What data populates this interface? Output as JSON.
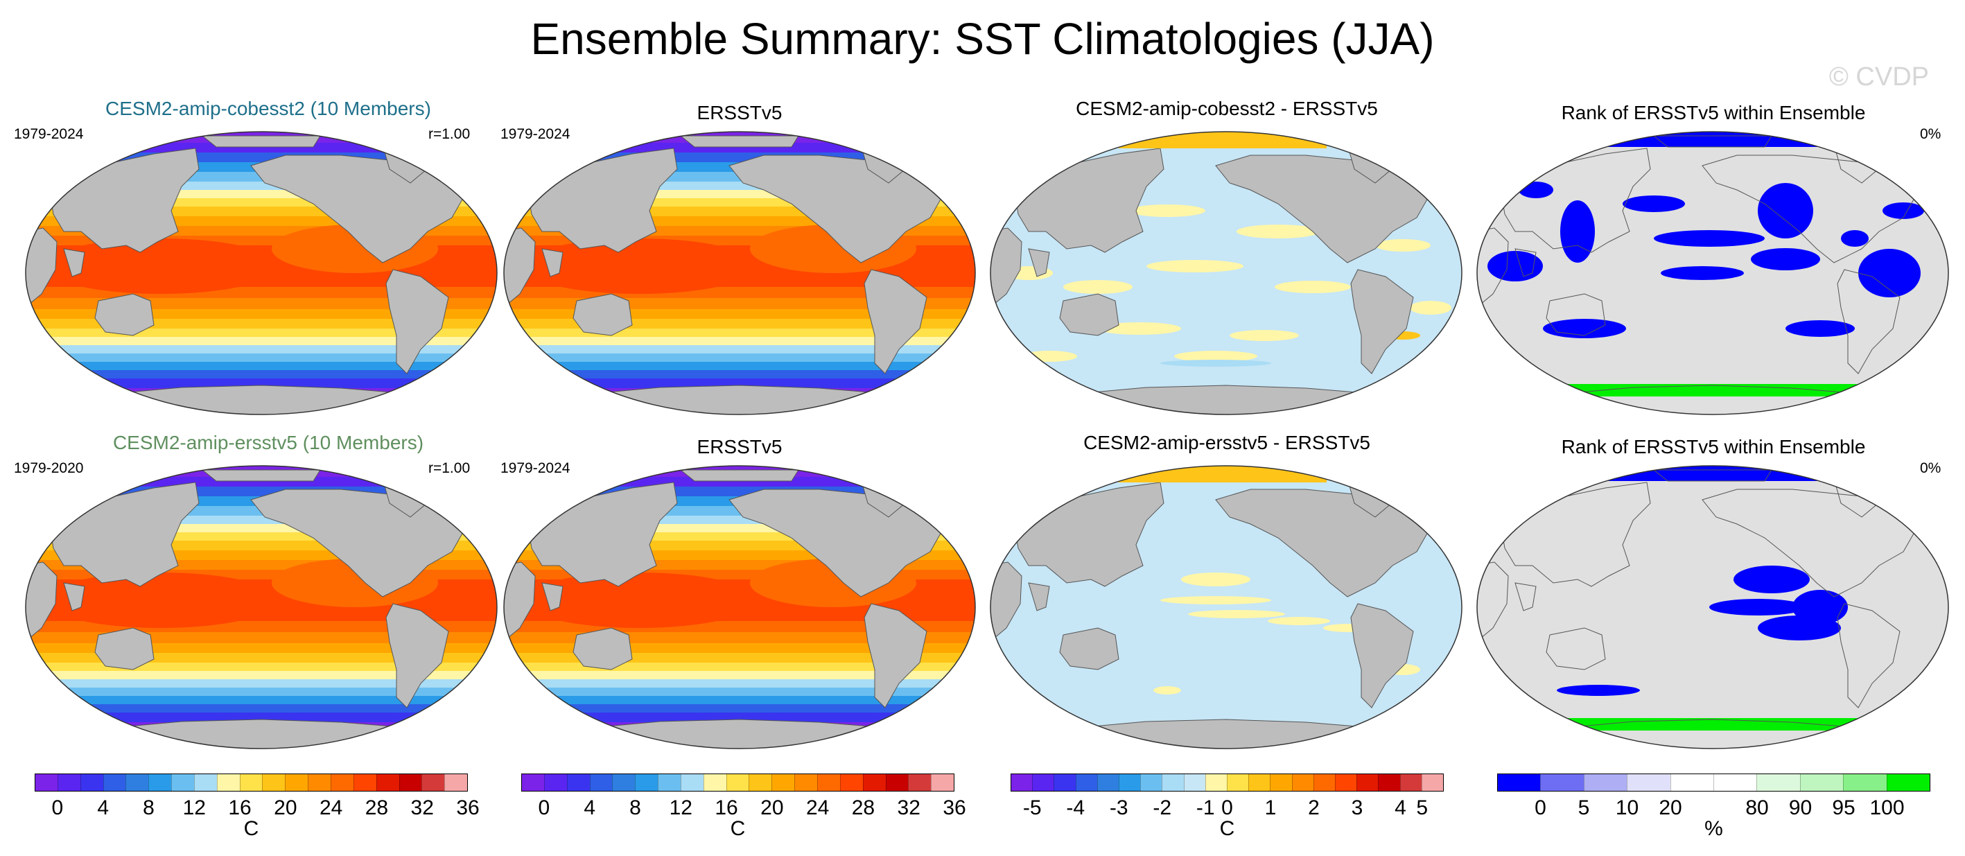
{
  "title": "Ensemble Summary: SST Climatologies (JJA)",
  "watermark": "© CVDP",
  "colors": {
    "land": "#bdbdbd",
    "rank_land": "#e0e0e0",
    "temp_scale": [
      "#7b23e8",
      "#5a25f0",
      "#3a34f0",
      "#2f5fe6",
      "#2f7fe0",
      "#2a9be8",
      "#6bbff0",
      "#a9dcf5",
      "#fff6a8",
      "#ffe14a",
      "#ffc418",
      "#ffa700",
      "#ff8a00",
      "#ff6a00",
      "#ff4500",
      "#e31a00",
      "#c80000",
      "#d43a3a",
      "#f5a7a7"
    ],
    "diff_scale": [
      "#7b23e8",
      "#5a25f0",
      "#3a34f0",
      "#2f5fe6",
      "#2f7fe0",
      "#2a9be8",
      "#6bbff0",
      "#a9dcf5",
      "#c7e6f6",
      "#fff6a8",
      "#ffe14a",
      "#ffc418",
      "#ffa700",
      "#ff8a00",
      "#ff6a00",
      "#ff4500",
      "#e31a00",
      "#c80000",
      "#d43a3a",
      "#f5a7a7"
    ],
    "rank_scale": [
      "#0000ff",
      "#6e6ef5",
      "#aeaef5",
      "#e0e0fa",
      "#ffffff",
      "#ffffff",
      "#ddf9dd",
      "#bff5bf",
      "#88f088",
      "#00ee00"
    ]
  },
  "rows": [
    {
      "model_title": "CESM2-amip-cobesst2 (10 Members)",
      "model_years": "1979-2024",
      "model_r": "r=1.00",
      "obs_title": "ERSSTv5",
      "obs_years": "1979-2024",
      "diff_title": "CESM2-amip-cobesst2 - ERSSTv5",
      "rank_title": "Rank of ERSSTv5 within Ensemble",
      "rank_pct": "0%"
    },
    {
      "model_title": "CESM2-amip-ersstv5 (10 Members)",
      "model_years": "1979-2020",
      "model_r": "r=1.00",
      "obs_title": "ERSSTv5",
      "obs_years": "1979-2024",
      "diff_title": "CESM2-amip-ersstv5 - ERSSTv5",
      "rank_title": "Rank of ERSSTv5 within Ensemble",
      "rank_pct": "0%"
    }
  ],
  "colorbars": {
    "temp": {
      "ticks": [
        "0",
        "4",
        "8",
        "12",
        "16",
        "20",
        "24",
        "28",
        "32",
        "36"
      ],
      "unit": "C"
    },
    "diff": {
      "ticks": [
        "-5",
        "-4",
        "-3",
        "-2",
        "-1",
        "0",
        "1",
        "2",
        "3",
        "4",
        "5"
      ],
      "unit": "C"
    },
    "rank": {
      "ticks": [
        "0",
        "5",
        "10",
        "20",
        "80",
        "90",
        "95",
        "100"
      ],
      "unit": "%"
    }
  }
}
